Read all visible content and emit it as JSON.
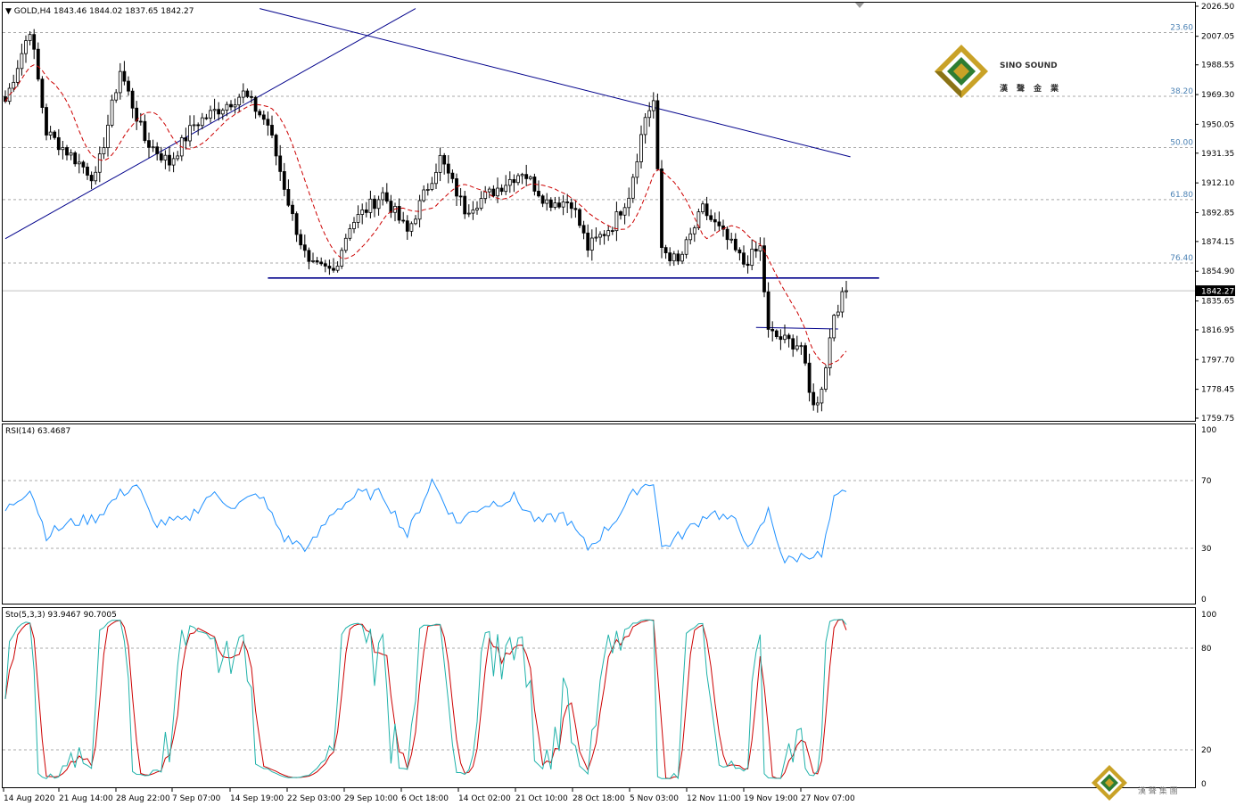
{
  "chart_data": [
    {
      "type": "candlestick",
      "title": "GOLD,H4",
      "ohlc_readout": "1843.46 1844.02 1837.65 1842.27",
      "symbol": "GOLD",
      "timeframe": "H4",
      "last_price": "1842.27",
      "ylim": [
        1759.75,
        2026.5
      ],
      "y_ticks": [
        "2026.50",
        "2007.05",
        "1988.55",
        "1969.30",
        "1950.05",
        "1931.35",
        "1912.10",
        "1892.85",
        "1874.15",
        "1854.90",
        "1835.65",
        "1816.95",
        "1797.70",
        "1778.45",
        "1759.75"
      ],
      "x_ticks": [
        "14 Aug 2020",
        "21 Aug 14:00",
        "28 Aug 22:00",
        "7 Sep 07:00",
        "14 Sep 19:00",
        "22 Sep 03:00",
        "29 Sep 10:00",
        "6 Oct 18:00",
        "14 Oct 02:00",
        "21 Oct 10:00",
        "28 Oct 18:00",
        "5 Nov 03:00",
        "12 Nov 11:00",
        "19 Nov 19:00",
        "27 Nov 07:00"
      ],
      "fibonacci_levels": [
        {
          "label": "23.60",
          "price": 2009.5
        },
        {
          "label": "38.20",
          "price": 1968.2
        },
        {
          "label": "50.00",
          "price": 1935.0
        },
        {
          "label": "61.80",
          "price": 1901.3
        },
        {
          "label": "76.40",
          "price": 1860.2
        }
      ],
      "trendlines": [
        {
          "name": "rising trendline",
          "from": [
            0,
            1876
          ],
          "to": [
            100,
            2025
          ]
        },
        {
          "name": "falling trendline",
          "from": [
            62,
            2025
          ],
          "to": [
            206,
            1929
          ]
        },
        {
          "name": "horizontal support",
          "from": [
            64,
            1850.5
          ],
          "to": [
            213,
            1850.5
          ]
        },
        {
          "name": "short horizontal",
          "from": [
            183,
            1818.5
          ],
          "to": [
            203,
            1817.5
          ]
        }
      ],
      "moving_average": {
        "style": "dashed red"
      },
      "bar_count": 206,
      "key_points": [
        {
          "bar": 0,
          "price": 1965
        },
        {
          "bar": 6,
          "price": 2012
        },
        {
          "bar": 10,
          "price": 1945
        },
        {
          "bar": 14,
          "price": 1935
        },
        {
          "bar": 22,
          "price": 1915
        },
        {
          "bar": 28,
          "price": 1985
        },
        {
          "bar": 34,
          "price": 1940
        },
        {
          "bar": 40,
          "price": 1925
        },
        {
          "bar": 46,
          "price": 1950
        },
        {
          "bar": 52,
          "price": 1960
        },
        {
          "bar": 58,
          "price": 1970
        },
        {
          "bar": 64,
          "price": 1950
        },
        {
          "bar": 70,
          "price": 1890
        },
        {
          "bar": 74,
          "price": 1858
        },
        {
          "bar": 80,
          "price": 1855
        },
        {
          "bar": 84,
          "price": 1885
        },
        {
          "bar": 92,
          "price": 1905
        },
        {
          "bar": 98,
          "price": 1880
        },
        {
          "bar": 106,
          "price": 1928
        },
        {
          "bar": 112,
          "price": 1895
        },
        {
          "bar": 118,
          "price": 1905
        },
        {
          "bar": 126,
          "price": 1920
        },
        {
          "bar": 132,
          "price": 1900
        },
        {
          "bar": 138,
          "price": 1900
        },
        {
          "bar": 142,
          "price": 1870
        },
        {
          "bar": 148,
          "price": 1885
        },
        {
          "bar": 152,
          "price": 1905
        },
        {
          "bar": 156,
          "price": 1955
        },
        {
          "bar": 158,
          "price": 1965
        },
        {
          "bar": 160,
          "price": 1870
        },
        {
          "bar": 164,
          "price": 1860
        },
        {
          "bar": 170,
          "price": 1895
        },
        {
          "bar": 176,
          "price": 1875
        },
        {
          "bar": 180,
          "price": 1860
        },
        {
          "bar": 184,
          "price": 1870
        },
        {
          "bar": 186,
          "price": 1815
        },
        {
          "bar": 190,
          "price": 1810
        },
        {
          "bar": 194,
          "price": 1807
        },
        {
          "bar": 196,
          "price": 1775
        },
        {
          "bar": 198,
          "price": 1768
        },
        {
          "bar": 200,
          "price": 1795
        },
        {
          "bar": 202,
          "price": 1828
        },
        {
          "bar": 205,
          "price": 1842.27
        }
      ]
    },
    {
      "type": "line",
      "title": "RSI(14) 63.4687",
      "ylim": [
        0,
        100
      ],
      "y_ticks": [
        "100",
        "70",
        "30",
        "0"
      ],
      "levels": [
        70,
        30
      ],
      "key_points": [
        {
          "bar": 0,
          "value": 52
        },
        {
          "bar": 6,
          "value": 66
        },
        {
          "bar": 10,
          "value": 38
        },
        {
          "bar": 16,
          "value": 45
        },
        {
          "bar": 22,
          "value": 48
        },
        {
          "bar": 28,
          "value": 62
        },
        {
          "bar": 32,
          "value": 68
        },
        {
          "bar": 36,
          "value": 45
        },
        {
          "bar": 44,
          "value": 46
        },
        {
          "bar": 50,
          "value": 62
        },
        {
          "bar": 56,
          "value": 55
        },
        {
          "bar": 62,
          "value": 62
        },
        {
          "bar": 68,
          "value": 36
        },
        {
          "bar": 74,
          "value": 30
        },
        {
          "bar": 80,
          "value": 52
        },
        {
          "bar": 86,
          "value": 62
        },
        {
          "bar": 92,
          "value": 62
        },
        {
          "bar": 98,
          "value": 38
        },
        {
          "bar": 104,
          "value": 70
        },
        {
          "bar": 110,
          "value": 45
        },
        {
          "bar": 116,
          "value": 55
        },
        {
          "bar": 124,
          "value": 60
        },
        {
          "bar": 130,
          "value": 45
        },
        {
          "bar": 136,
          "value": 50
        },
        {
          "bar": 142,
          "value": 30
        },
        {
          "bar": 148,
          "value": 45
        },
        {
          "bar": 154,
          "value": 65
        },
        {
          "bar": 158,
          "value": 70
        },
        {
          "bar": 160,
          "value": 30
        },
        {
          "bar": 166,
          "value": 40
        },
        {
          "bar": 172,
          "value": 52
        },
        {
          "bar": 178,
          "value": 45
        },
        {
          "bar": 182,
          "value": 30
        },
        {
          "bar": 186,
          "value": 52
        },
        {
          "bar": 190,
          "value": 22
        },
        {
          "bar": 196,
          "value": 27
        },
        {
          "bar": 199,
          "value": 25
        },
        {
          "bar": 202,
          "value": 58
        },
        {
          "bar": 205,
          "value": 63.47
        }
      ]
    },
    {
      "type": "line",
      "title": "Sto(5,3,3) 93.9467 90.7005",
      "ylim": [
        0,
        100
      ],
      "y_ticks": [
        "100",
        "80",
        "20",
        "0"
      ],
      "levels": [
        80,
        20
      ],
      "series": [
        {
          "name": "%K",
          "color": "#20b2aa",
          "last": 93.9467
        },
        {
          "name": "%D",
          "color": "#cc0000",
          "last": 90.7005
        }
      ]
    }
  ],
  "logo": {
    "brand_en": "SINO SOUND",
    "brand_cn": "漢聲金業",
    "watermark_cn": "漢 聲 集 團"
  },
  "colors": {
    "candle": "#000000",
    "trendline": "#00008b",
    "moving_average": "#cc0000",
    "fib": "#4d83b5",
    "rsi": "#1e90ff",
    "grid_dash": "#a9a9a9",
    "logo_gold": "#c9a227",
    "logo_green": "#2e7d32"
  }
}
